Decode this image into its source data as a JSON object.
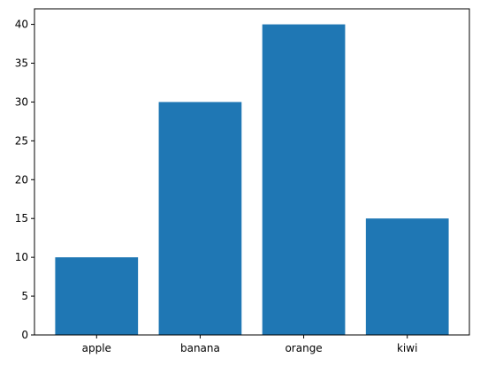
{
  "chart_data": {
    "type": "bar",
    "categories": [
      "apple",
      "banana",
      "orange",
      "kiwi"
    ],
    "values": [
      10,
      30,
      40,
      15
    ],
    "yticks": [
      0,
      5,
      10,
      15,
      20,
      25,
      30,
      35,
      40
    ],
    "ylim": [
      0,
      42
    ],
    "title": "",
    "xlabel": "",
    "ylabel": "",
    "grid": false,
    "bar_color": "#1f77b4"
  }
}
